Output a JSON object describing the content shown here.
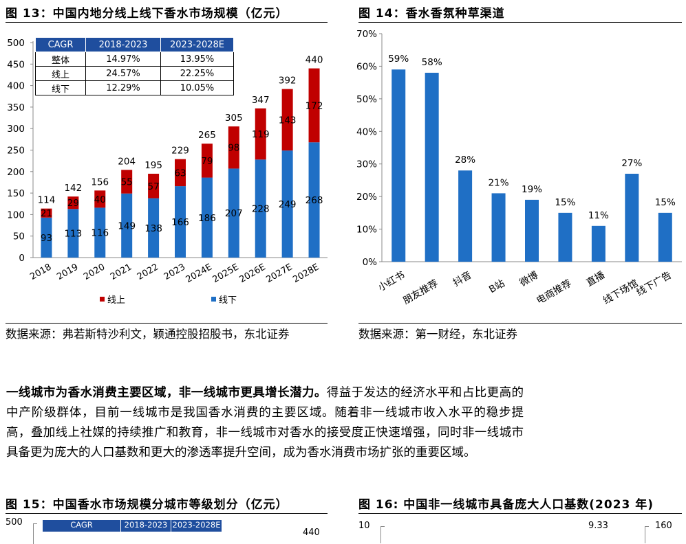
{
  "fig13": {
    "title": "图 13：中国内地分线上线下香水市场规模（亿元）",
    "source": "数据来源：弗若斯特沙利文，颖通控股招股书，东北证券",
    "cagr_table": {
      "headers": [
        "CAGR",
        "2018-2023",
        "2023-2028E"
      ],
      "rows": [
        [
          "整体",
          "14.97%",
          "13.95%"
        ],
        [
          "线上",
          "24.57%",
          "22.25%"
        ],
        [
          "线下",
          "12.29%",
          "10.05%"
        ]
      ]
    }
  },
  "fig14": {
    "title": "图 14：香水香氛种草渠道",
    "source": "数据来源：第一财经，东北证券"
  },
  "paragraph": {
    "lead": "一线城市为香水消费主要区域，非一线城市更具增长潜力。",
    "body": "得益于发达的经济水平和占比更高的中产阶级群体，目前一线城市是我国香水消费的主要区域。随着非一线城市收入水平的稳步提高，叠加线上社媒的持续推广和教育，非一线城市对香水的接受度正快速增强，同时非一线城市具备更为庞大的人口基数和更大的渗透率提升空间，成为香水消费市场扩张的重要区域。"
  },
  "fig15": {
    "title": "图 15：中国香水市场规模分城市等级划分（亿元）",
    "axis_top": "500",
    "value_top": "440",
    "table_headers": [
      "CAGR",
      "2018-2023",
      "2023-2028E"
    ]
  },
  "fig16": {
    "title": "图 16: 中国非一线城市具备庞大人口基数(2023 年)",
    "axis_left_top": "10",
    "value_top": "9.33",
    "axis_right_top": "160"
  },
  "colors": {
    "online": "#c00000",
    "offline": "#1f6fc5",
    "bar14": "#1f6fc5"
  },
  "chart_data": [
    {
      "type": "bar",
      "stacked": true,
      "title": "中国内地分线上线下香水市场规模（亿元）",
      "categories": [
        "2018",
        "2019",
        "2020",
        "2021",
        "2022",
        "2023",
        "2024E",
        "2025E",
        "2026E",
        "2027E",
        "2028E"
      ],
      "series": [
        {
          "name": "线下",
          "values": [
            93,
            113,
            116,
            149,
            138,
            166,
            186,
            207,
            228,
            249,
            268
          ]
        },
        {
          "name": "线上",
          "values": [
            21,
            29,
            40,
            55,
            57,
            63,
            79,
            98,
            119,
            143,
            172
          ]
        }
      ],
      "totals": [
        "114",
        "142",
        "156",
        "204",
        "195",
        "229",
        "265",
        "305",
        "347",
        "392",
        "440"
      ],
      "yticks": [
        "0",
        "50",
        "100",
        "150",
        "200",
        "250",
        "300",
        "350",
        "400",
        "450",
        "500"
      ],
      "ylim": [
        0,
        500
      ],
      "legend": [
        "线上",
        "线下"
      ]
    },
    {
      "type": "bar",
      "title": "香水香氛种草渠道",
      "categories": [
        "小红书",
        "朋友推荐",
        "抖音",
        "B站",
        "微博",
        "电商推荐",
        "直播",
        "线下场馆",
        "线下广告"
      ],
      "values": [
        59,
        58,
        28,
        21,
        19,
        15,
        11,
        27,
        15
      ],
      "labels": [
        "59%",
        "58%",
        "28%",
        "21%",
        "19%",
        "15%",
        "11%",
        "27%",
        "15%"
      ],
      "yticks": [
        "0%",
        "10%",
        "20%",
        "30%",
        "40%",
        "50%",
        "60%",
        "70%"
      ],
      "ylim": [
        0,
        70
      ]
    }
  ]
}
